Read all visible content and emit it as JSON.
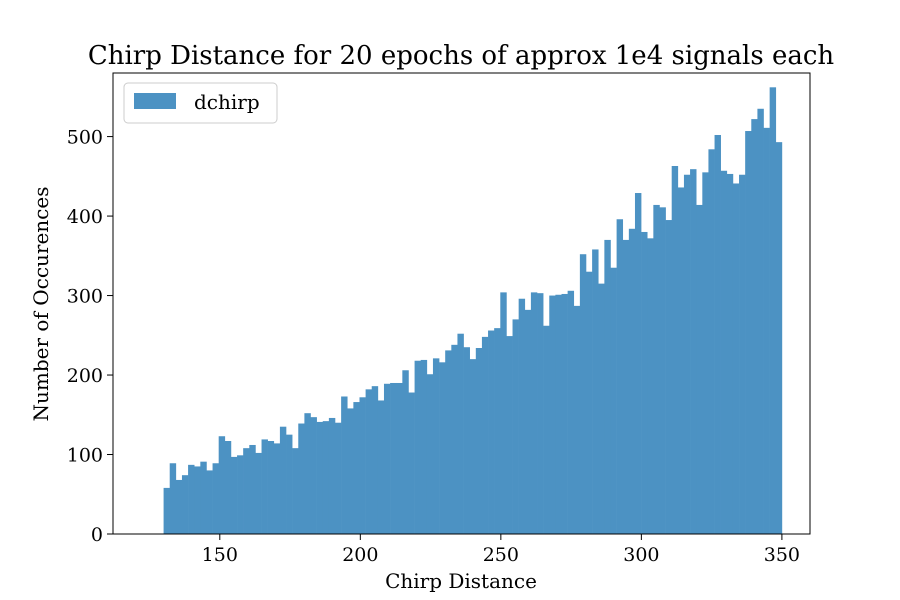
{
  "chart_data": {
    "type": "bar",
    "title": "Chirp Distance for 20 epochs of approx 1e4 signals each",
    "xlabel": "Chirp Distance",
    "ylabel": "Number of Occurences",
    "xlim": [
      112,
      360
    ],
    "ylim": [
      0,
      580
    ],
    "x_ticks": [
      150,
      200,
      250,
      300,
      350
    ],
    "y_ticks": [
      0,
      100,
      200,
      300,
      400,
      500
    ],
    "legend": {
      "placement": "top-left",
      "entries": [
        "dchirp"
      ]
    },
    "bin_start": 130,
    "bin_end": 350,
    "series": [
      {
        "name": "dchirp",
        "color": "#4c92c3",
        "values": [
          58,
          89,
          68,
          74,
          87,
          85,
          91,
          80,
          89,
          123,
          117,
          97,
          99,
          108,
          112,
          102,
          119,
          117,
          114,
          135,
          125,
          108,
          139,
          152,
          147,
          141,
          142,
          146,
          140,
          173,
          158,
          166,
          172,
          182,
          186,
          168,
          189,
          190,
          190,
          206,
          178,
          218,
          219,
          201,
          221,
          216,
          231,
          238,
          252,
          235,
          220,
          234,
          248,
          256,
          259,
          304,
          249,
          270,
          296,
          282,
          304,
          303,
          262,
          300,
          301,
          302,
          306,
          287,
          352,
          330,
          358,
          315,
          370,
          335,
          396,
          370,
          384,
          429,
          380,
          372,
          414,
          411,
          395,
          463,
          436,
          452,
          459,
          414,
          455,
          484,
          502,
          457,
          453,
          441,
          452,
          507,
          522,
          535,
          511,
          562,
          493
        ]
      }
    ]
  }
}
